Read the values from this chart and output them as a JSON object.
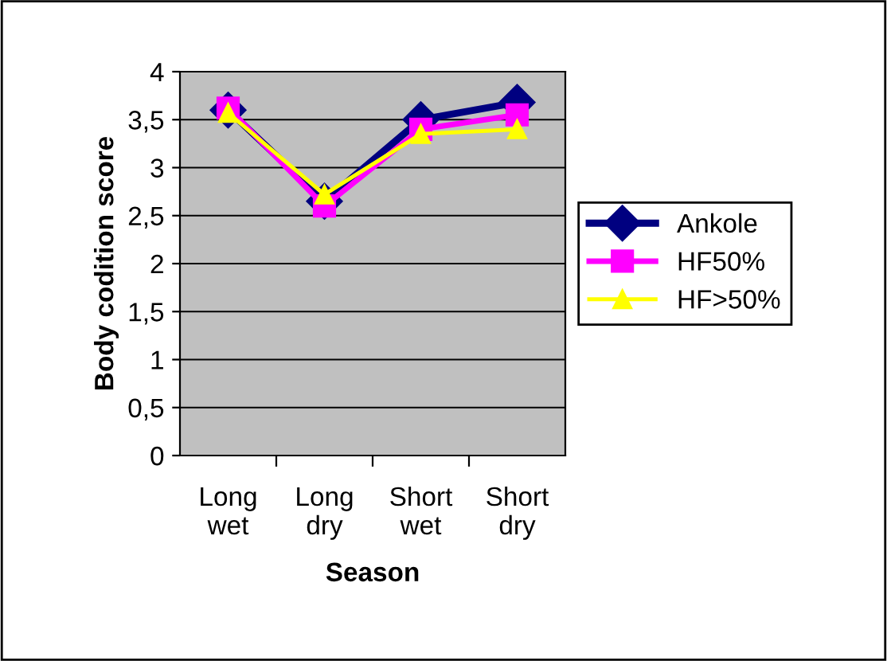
{
  "chart_data": {
    "type": "line",
    "xlabel": "Season",
    "ylabel": "Body codition score",
    "categories": [
      "Long\nwet",
      "Long\ndry",
      "Short\nwet",
      "Short\ndry"
    ],
    "series": [
      {
        "name": "Ankole",
        "color": "#000080",
        "marker": "diamond",
        "values": [
          3.6,
          2.65,
          3.5,
          3.68
        ]
      },
      {
        "name": "HF50%",
        "color": "#ff00ff",
        "marker": "square",
        "values": [
          3.62,
          2.6,
          3.4,
          3.55
        ]
      },
      {
        "name": "HF>50%",
        "color": "#ffff00",
        "marker": "triangle",
        "values": [
          3.57,
          2.72,
          3.35,
          3.4
        ]
      }
    ],
    "ylim": [
      0,
      4
    ],
    "yticks": [
      0,
      {
        "value": 0.5,
        "label": "0,5"
      },
      1,
      {
        "value": 1.5,
        "label": "1,5"
      },
      2,
      {
        "value": 2.5,
        "label": "2,5"
      },
      3,
      {
        "value": 3.5,
        "label": "3,5"
      },
      4
    ],
    "grid": "y",
    "legend": "right",
    "line_style": "solid"
  }
}
